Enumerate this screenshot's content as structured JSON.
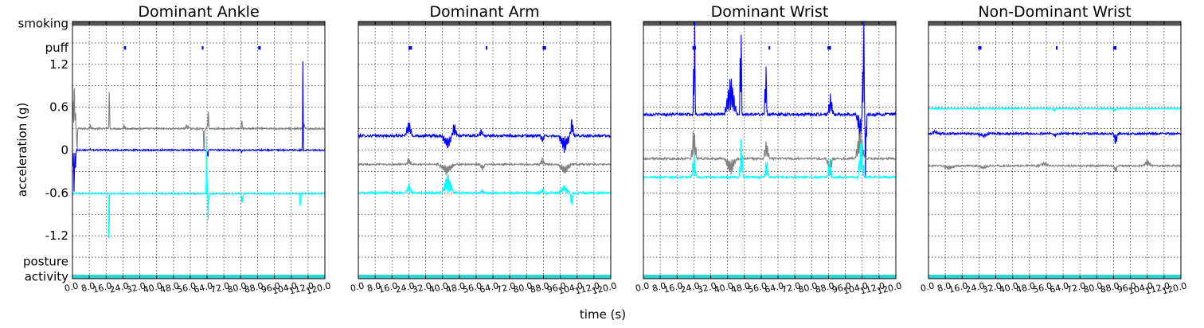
{
  "chart_data": {
    "type": "line",
    "xlabel": "time (s)",
    "ylabel": "acceleration (g)",
    "xlim": [
      0,
      120
    ],
    "x_ticks": [
      "0.0",
      "8.0",
      "16.0",
      "24.0",
      "32.0",
      "40.0",
      "48.0",
      "56.0",
      "64.0",
      "72.0",
      "80.0",
      "88.0",
      "96.0",
      "104.0",
      "112.0",
      "120.0"
    ],
    "ylim": [
      -1.8,
      1.8
    ],
    "y_ticks": [
      "1.2",
      "0.6",
      "0",
      "-0.6",
      "-1.2"
    ],
    "y_tick_values": [
      1.2,
      0.6,
      0,
      -0.6,
      -1.2
    ],
    "y_category_labels": [
      "smoking",
      "puff",
      "posture",
      "activity"
    ],
    "grid": true,
    "colors": {
      "x_axis": "#808080",
      "y_axis": "#0000ff",
      "z_axis": "#00ffff",
      "smoking_band": "#555555",
      "activity_band": "#2ad4d4",
      "puff_marker": "#0000ff"
    },
    "panels": [
      {
        "title": "Dominant Ankle",
        "puffs": [
          [
            24.5,
            25.5
          ],
          [
            61.5,
            62.3
          ],
          [
            88.3,
            89.5
          ]
        ],
        "series": [
          {
            "color": "#808080",
            "baseline": 0.3,
            "noise": 0.012,
            "events": [
              [
                0.8,
                1.3,
                0.7
              ],
              [
                2.0,
                0.6,
                -0.5
              ],
              [
                8.5,
                0.8,
                0.08
              ],
              [
                17.5,
                0.4,
                0.66
              ],
              [
                24.6,
                0.7,
                0.08
              ],
              [
                54.5,
                1.2,
                0.07
              ],
              [
                62.5,
                0.6,
                -0.4
              ],
              [
                64.5,
                0.6,
                0.3
              ],
              [
                80.5,
                0.7,
                0.15
              ],
              [
                110,
                0.5,
                0.14
              ]
            ]
          },
          {
            "color": "#0000ff",
            "baseline": 0.0,
            "noise": 0.01,
            "events": [
              [
                0.8,
                1.2,
                -0.6
              ],
              [
                8.5,
                0.6,
                0.03
              ],
              [
                64.2,
                0.5,
                -0.22
              ],
              [
                80.6,
                0.5,
                -0.04
              ],
              [
                109.5,
                0.35,
                1.32
              ]
            ]
          },
          {
            "color": "#00ffff",
            "baseline": -0.61,
            "noise": 0.01,
            "events": [
              [
                17.4,
                0.4,
                -1.0
              ],
              [
                63.9,
                0.45,
                1.22
              ],
              [
                64.6,
                0.4,
                -0.6
              ],
              [
                80.7,
                0.5,
                -0.3
              ],
              [
                108.4,
                0.35,
                -0.58
              ]
            ]
          }
        ]
      },
      {
        "title": "Dominant Arm",
        "puffs": [
          [
            23.8,
            25.5
          ],
          [
            60.6,
            61.1
          ],
          [
            87.6,
            89.2
          ]
        ],
        "series": [
          {
            "color": "#0000ff",
            "baseline": 0.2,
            "noise": 0.018,
            "events": [
              [
                24,
                1.8,
                0.25
              ],
              [
                42.5,
                3.0,
                -0.2
              ],
              [
                45.5,
                2.0,
                0.2
              ],
              [
                58.5,
                1.4,
                0.1
              ],
              [
                87.5,
                1.2,
                -0.1
              ],
              [
                98,
                3.0,
                -0.25
              ],
              [
                101.5,
                1.2,
                0.3
              ]
            ]
          },
          {
            "color": "#808080",
            "baseline": -0.2,
            "noise": 0.012,
            "events": [
              [
                24,
                1.5,
                0.1
              ],
              [
                42,
                4.0,
                -0.15
              ],
              [
                59,
                1.3,
                -0.1
              ],
              [
                87.5,
                1.2,
                0.1
              ],
              [
                98,
                3.5,
                -0.15
              ]
            ]
          },
          {
            "color": "#00ffff",
            "baseline": -0.6,
            "noise": 0.015,
            "events": [
              [
                24,
                1.6,
                0.15
              ],
              [
                42.5,
                3.0,
                0.3
              ],
              [
                59,
                1.2,
                0.05
              ],
              [
                87.5,
                1.3,
                0.08
              ],
              [
                98,
                3.0,
                0.12
              ],
              [
                101.5,
                1.0,
                -0.25
              ]
            ]
          }
        ]
      },
      {
        "title": "Dominant Wrist",
        "puffs": [
          [
            23.3,
            25.0
          ],
          [
            59.5,
            60.1
          ],
          [
            87.5,
            89.2
          ]
        ],
        "series": [
          {
            "color": "#0000ff",
            "baseline": 0.5,
            "noise": 0.02,
            "events": [
              [
                24.2,
                0.6,
                1.95
              ],
              [
                41.5,
                3.0,
                0.6
              ],
              [
                46.3,
                0.6,
                2.05
              ],
              [
                58.2,
                0.8,
                0.85
              ],
              [
                89,
                1.6,
                0.3
              ],
              [
                104.6,
                0.7,
                1.95
              ],
              [
                103,
                2.0,
                -0.4
              ],
              [
                105.7,
                0.6,
                -1.2
              ]
            ]
          },
          {
            "color": "#808080",
            "baseline": -0.12,
            "noise": 0.015,
            "events": [
              [
                24,
                1.5,
                0.5
              ],
              [
                41.5,
                3.0,
                -0.25
              ],
              [
                58.5,
                1.5,
                0.3
              ],
              [
                88.5,
                1.5,
                -0.3
              ],
              [
                103,
                2.5,
                0.45
              ]
            ]
          },
          {
            "color": "#00ffff",
            "baseline": -0.38,
            "noise": 0.015,
            "events": [
              [
                24,
                1.2,
                0.4
              ],
              [
                46.5,
                1.0,
                0.7
              ],
              [
                58.5,
                1.2,
                0.3
              ],
              [
                88.5,
                1.3,
                0.3
              ],
              [
                103.5,
                1.5,
                0.65
              ]
            ]
          }
        ]
      },
      {
        "title": "Non-Dominant Wrist",
        "puffs": [
          [
            23.6,
            25.2
          ],
          [
            60.6,
            61.4
          ],
          [
            87.8,
            89.4
          ]
        ],
        "series": [
          {
            "color": "#00ffff",
            "baseline": 0.58,
            "noise": 0.01,
            "events": [
              [
                60,
                1.0,
                -0.05
              ],
              [
                88.5,
                1.0,
                -0.05
              ]
            ]
          },
          {
            "color": "#0000ff",
            "baseline": 0.23,
            "noise": 0.015,
            "events": [
              [
                3,
                2.0,
                0.05
              ],
              [
                26,
                3.0,
                -0.05
              ],
              [
                60,
                2.0,
                -0.05
              ],
              [
                89,
                1.2,
                -0.18
              ]
            ]
          },
          {
            "color": "#808080",
            "baseline": -0.22,
            "noise": 0.012,
            "events": [
              [
                10,
                4.0,
                -0.05
              ],
              [
                26,
                3.0,
                -0.05
              ],
              [
                55,
                3.0,
                0.05
              ],
              [
                89,
                1.0,
                -0.12
              ],
              [
                104,
                2.0,
                0.1
              ]
            ]
          }
        ]
      }
    ]
  }
}
